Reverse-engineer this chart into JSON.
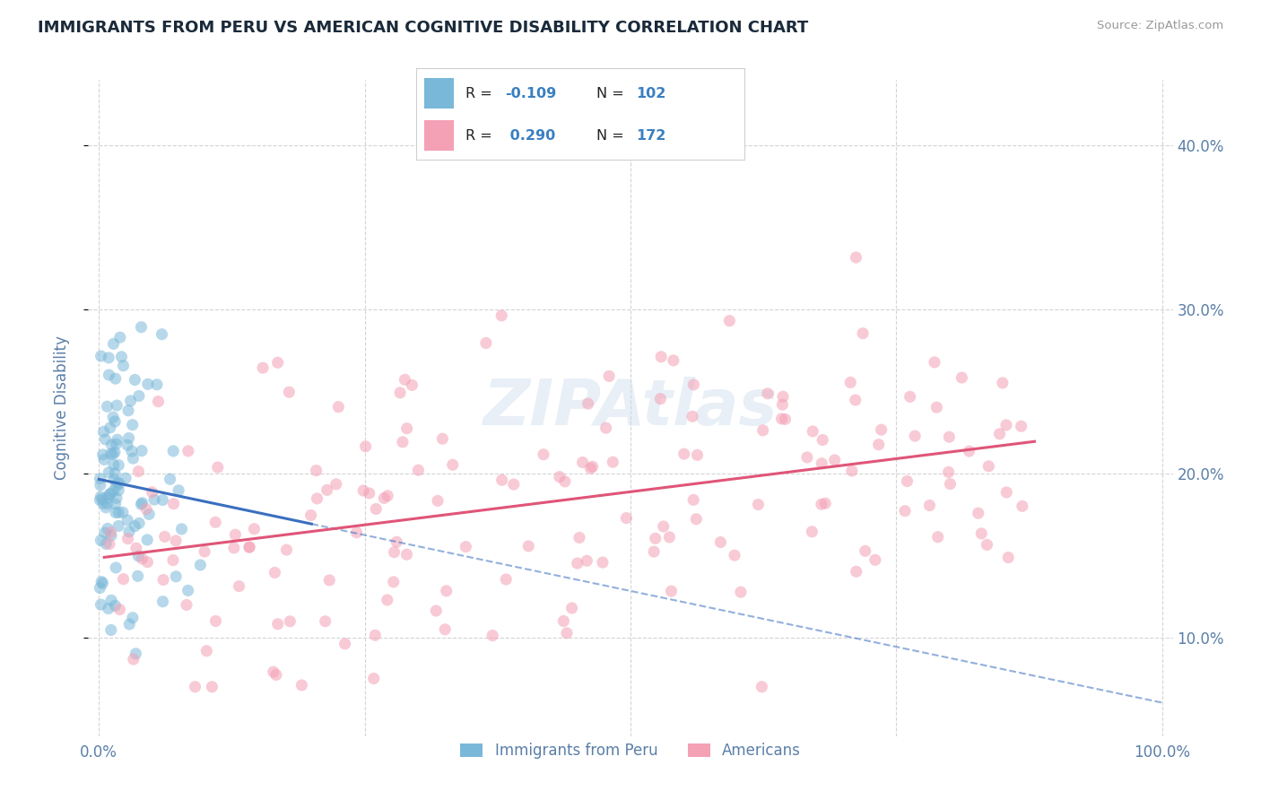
{
  "title": "IMMIGRANTS FROM PERU VS AMERICAN COGNITIVE DISABILITY CORRELATION CHART",
  "source": "Source: ZipAtlas.com",
  "xlabel": "",
  "ylabel": "Cognitive Disability",
  "xlim": [
    -0.01,
    1.01
  ],
  "ylim": [
    0.04,
    0.44
  ],
  "yticks": [
    0.1,
    0.2,
    0.3,
    0.4
  ],
  "xticks": [
    0.0,
    0.25,
    0.5,
    0.75,
    1.0
  ],
  "xtick_labels": [
    "0.0%",
    "",
    "",
    "",
    "100.0%"
  ],
  "ytick_labels": [
    "10.0%",
    "20.0%",
    "30.0%",
    "40.0%"
  ],
  "legend_labels": [
    "Immigrants from Peru",
    "Americans"
  ],
  "R_peru": -0.109,
  "N_peru": 102,
  "R_americans": 0.29,
  "N_americans": 172,
  "blue_color": "#7ab8d9",
  "pink_color": "#f4a0b5",
  "blue_line_color": "#3a6fbf",
  "pink_line_color": "#e05578",
  "watermark": "ZIPAtlas",
  "background_color": "#ffffff",
  "grid_color": "#d0d0d0",
  "title_color": "#1a2a3a",
  "axis_label_color": "#5a7fa8",
  "legend_R_color": "#3a7fc1"
}
